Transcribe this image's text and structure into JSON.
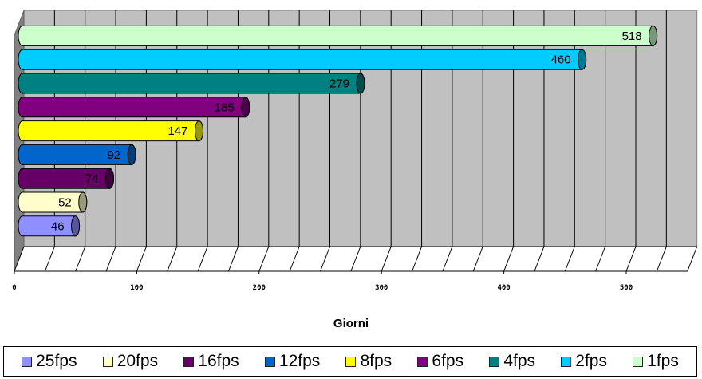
{
  "chart_data": {
    "type": "bar",
    "orientation": "horizontal",
    "categories": [
      "25fps",
      "20fps",
      "16fps",
      "12fps",
      "8fps",
      "6fps",
      "4fps",
      "2fps",
      "1fps"
    ],
    "values": [
      46,
      52,
      74,
      92,
      147,
      185,
      279,
      460,
      518
    ],
    "colors": [
      "#8f8fff",
      "#ffffcc",
      "#660066",
      "#0066cc",
      "#ffff00",
      "#800080",
      "#008080",
      "#00ccff",
      "#ccffcc"
    ],
    "xlabel": "Giorni",
    "xlim": [
      0,
      550
    ],
    "xticks": [
      0,
      100,
      200,
      300,
      400,
      500
    ],
    "grid": true,
    "legend_position": "bottom",
    "style": "3d-cylinder"
  }
}
